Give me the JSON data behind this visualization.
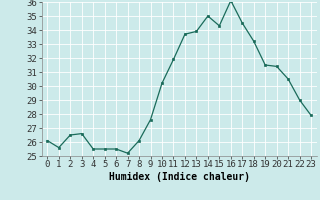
{
  "x": [
    0,
    1,
    2,
    3,
    4,
    5,
    6,
    7,
    8,
    9,
    10,
    11,
    12,
    13,
    14,
    15,
    16,
    17,
    18,
    19,
    20,
    21,
    22,
    23
  ],
  "y": [
    26.1,
    25.6,
    26.5,
    26.6,
    25.5,
    25.5,
    25.5,
    25.2,
    26.1,
    27.6,
    30.2,
    31.9,
    33.7,
    33.9,
    35.0,
    34.3,
    36.1,
    34.5,
    33.2,
    31.5,
    31.4,
    30.5,
    29.0,
    27.9
  ],
  "line_color": "#1a6b5a",
  "marker_color": "#1a6b5a",
  "bg_color": "#cceaea",
  "grid_color": "#ffffff",
  "xlabel": "Humidex (Indice chaleur)",
  "ylim_min": 25,
  "ylim_max": 36,
  "xlim_min": -0.5,
  "xlim_max": 23.5,
  "yticks": [
    25,
    26,
    27,
    28,
    29,
    30,
    31,
    32,
    33,
    34,
    35,
    36
  ],
  "xtick_labels": [
    "0",
    "1",
    "2",
    "3",
    "4",
    "5",
    "6",
    "7",
    "8",
    "9",
    "10",
    "11",
    "12",
    "13",
    "14",
    "15",
    "16",
    "17",
    "18",
    "19",
    "20",
    "21",
    "22",
    "23"
  ],
  "label_fontsize": 7,
  "tick_fontsize": 6.5
}
